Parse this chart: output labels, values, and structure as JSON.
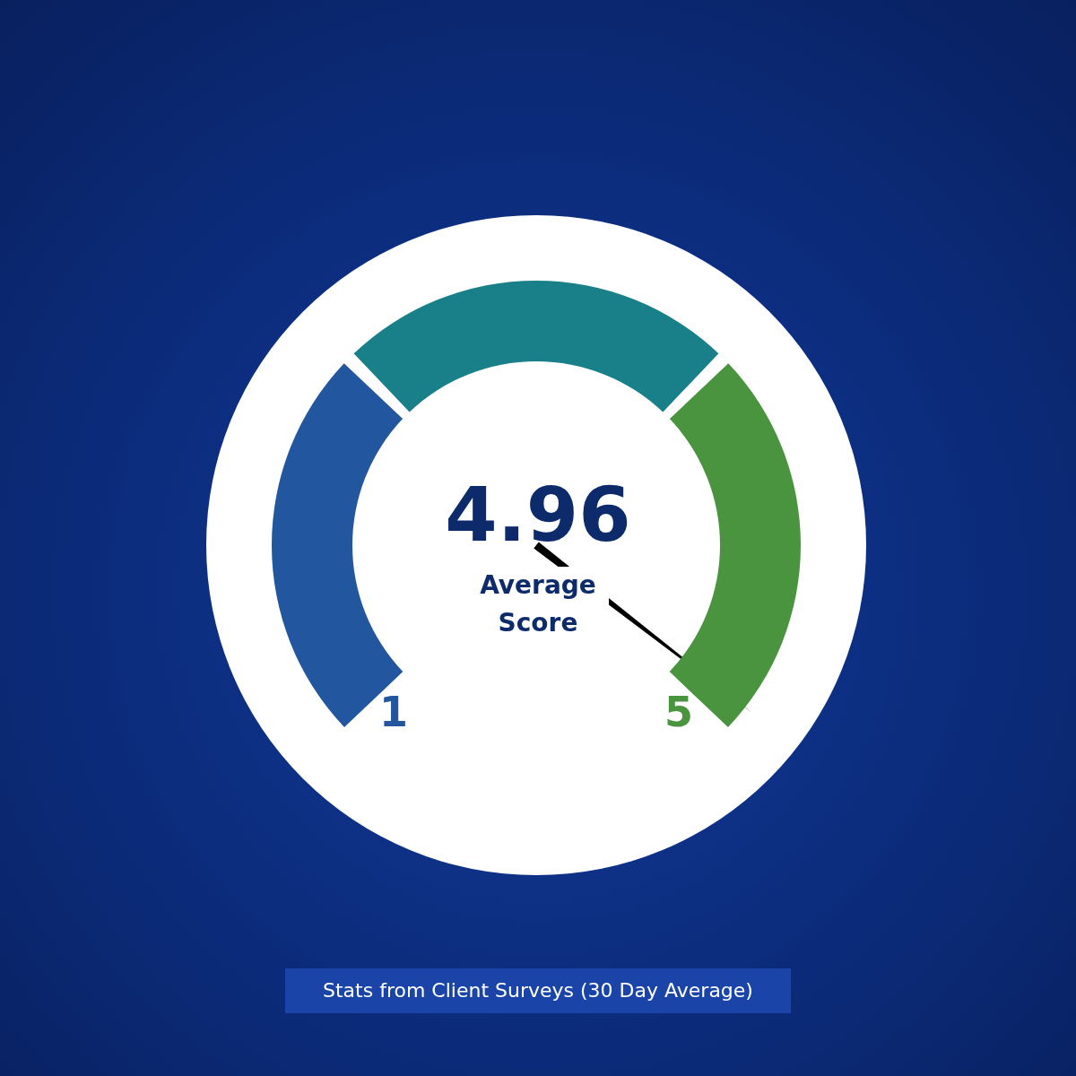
{
  "chart_data": {
    "type": "donut",
    "title": "4.96",
    "subtitle": "Average Score",
    "categories": [
      "1",
      null,
      "5"
    ],
    "values": [
      33.3,
      33.4,
      33.3
    ],
    "colors": [
      "#2257a0",
      "#197f88",
      "#4a9440"
    ],
    "needle": "5",
    "annotations": [
      "Stats from Client Surveys (30 Day Average)"
    ]
  }
}
